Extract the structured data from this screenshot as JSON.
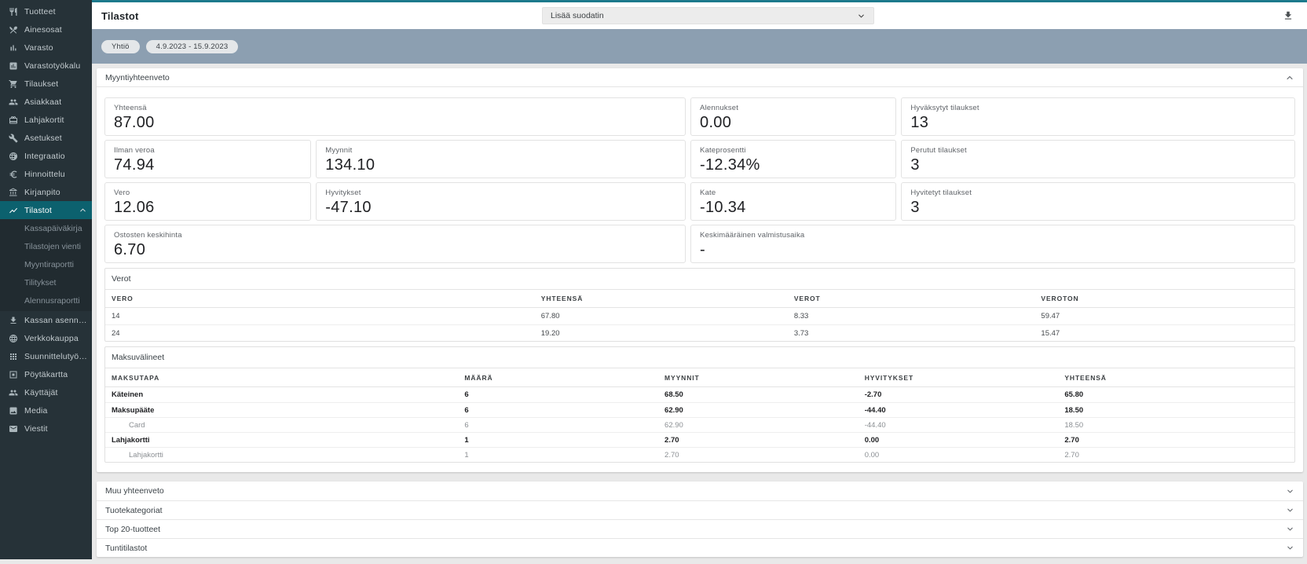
{
  "topbar": {
    "title": "Tilastot",
    "filter_select_label": "Lisää suodatin"
  },
  "filter_chips": [
    "Yhtiö",
    "4.9.2023 - 15.9.2023"
  ],
  "sidebar": {
    "items": [
      {
        "label": "Tuotteet",
        "icon": "restaurant-icon"
      },
      {
        "label": "Ainesosat",
        "icon": "utensils-crossed-icon"
      },
      {
        "label": "Varasto",
        "icon": "bar-chart-icon"
      },
      {
        "label": "Varastotyökalu",
        "icon": "chart-box-icon"
      },
      {
        "label": "Tilaukset",
        "icon": "cart-icon"
      },
      {
        "label": "Asiakkaat",
        "icon": "people-icon"
      },
      {
        "label": "Lahjakortit",
        "icon": "giftcard-icon"
      },
      {
        "label": "Asetukset",
        "icon": "wrench-icon"
      },
      {
        "label": "Integraatio",
        "icon": "integration-globe-icon"
      },
      {
        "label": "Hinnoittelu",
        "icon": "euro-icon"
      },
      {
        "label": "Kirjanpito",
        "icon": "bank-icon"
      },
      {
        "label": "Tilastot",
        "icon": "trend-chart-icon",
        "selected": true,
        "expanded": true,
        "children": [
          "Kassapäiväkirja",
          "Tilastojen vienti",
          "Myyntiraportti",
          "Tilitykset",
          "Alennusraportti"
        ]
      },
      {
        "label": "Kassan asennus",
        "icon": "download-icon"
      },
      {
        "label": "Verkkokauppa",
        "icon": "globe-icon"
      },
      {
        "label": "Suunnittelutyökalu",
        "icon": "grid-icon"
      },
      {
        "label": "Pöytäkartta",
        "icon": "table-map-icon"
      },
      {
        "label": "Käyttäjät",
        "icon": "users-icon"
      },
      {
        "label": "Media",
        "icon": "image-icon"
      },
      {
        "label": "Viestit",
        "icon": "mail-icon"
      }
    ]
  },
  "summary": {
    "title": "Myyntiyhteenveto",
    "cards": [
      {
        "label": "Yhteensä",
        "value": "87.00",
        "span": 2
      },
      {
        "label": "Alennukset",
        "value": "0.00",
        "span": 1
      },
      {
        "label": "Hyväksytyt tilaukset",
        "value": "13",
        "span": 1
      },
      {
        "label": "Ilman veroa",
        "value": "74.94",
        "span": 1
      },
      {
        "label": "Myynnit",
        "value": "134.10",
        "span": 1
      },
      {
        "label": "Kateprosentti",
        "value": "-12.34%",
        "span": 1
      },
      {
        "label": "Perutut tilaukset",
        "value": "3",
        "span": 1
      },
      {
        "label": "Vero",
        "value": "12.06",
        "span": 1
      },
      {
        "label": "Hyvitykset",
        "value": "-47.10",
        "span": 1
      },
      {
        "label": "Kate",
        "value": "-10.34",
        "span": 1
      },
      {
        "label": "Hyvitetyt tilaukset",
        "value": "3",
        "span": 1
      },
      {
        "label": "Ostosten keskihinta",
        "value": "6.70",
        "span": 2
      },
      {
        "label": "Keskimääräinen valmistusaika",
        "value": "-",
        "span": 2
      }
    ]
  },
  "taxes": {
    "title": "Verot",
    "headers": [
      "VERO",
      "YHTEENSÄ",
      "VEROT",
      "VEROTON"
    ],
    "rows": [
      [
        "14",
        "67.80",
        "8.33",
        "59.47"
      ],
      [
        "24",
        "19.20",
        "3.73",
        "15.47"
      ]
    ]
  },
  "payments": {
    "title": "Maksuvälineet",
    "headers": [
      "MAKSUTAPA",
      "MÄÄRÄ",
      "MYYNNIT",
      "HYVITYKSET",
      "YHTEENSÄ"
    ],
    "rows": [
      {
        "label": "Käteinen",
        "style": "bold",
        "values": [
          "6",
          "68.50",
          "-2.70",
          "65.80"
        ]
      },
      {
        "label": "Maksupääte",
        "style": "bold",
        "values": [
          "6",
          "62.90",
          "-44.40",
          "18.50"
        ]
      },
      {
        "label": "Card",
        "style": "sub",
        "values": [
          "6",
          "62.90",
          "-44.40",
          "18.50"
        ]
      },
      {
        "label": "Lahjakortti",
        "style": "bold",
        "values": [
          "1",
          "2.70",
          "0.00",
          "2.70"
        ]
      },
      {
        "label": "Lahjakortti",
        "style": "sub",
        "values": [
          "1",
          "2.70",
          "0.00",
          "2.70"
        ]
      }
    ]
  },
  "collapsed_sections": [
    "Muu yhteenveto",
    "Tuotekategoriat",
    "Top 20-tuotteet",
    "Tuntitilastot"
  ],
  "colors": {
    "sidebar_bg": "#263238",
    "accent_teal": "#0c616e",
    "topline_teal": "#1d7a8c",
    "filterbar_blue": "#8c9fb1",
    "content_bg": "#ececec"
  }
}
